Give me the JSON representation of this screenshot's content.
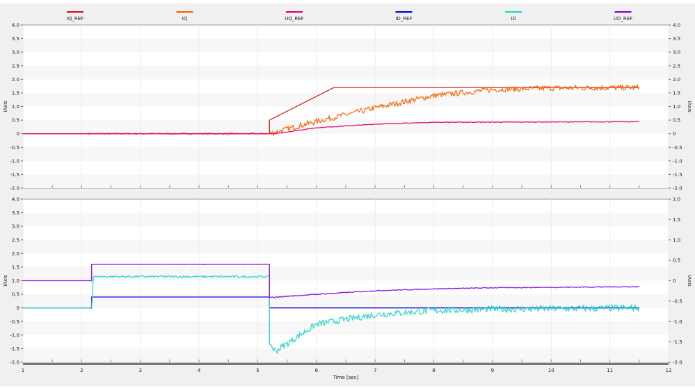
{
  "chart_data": [
    {
      "type": "line",
      "title": "",
      "ylabel": "IAxis",
      "ylabel_right": "IAxis",
      "ylim": [
        -2,
        4
      ],
      "ylim_right": [
        -2,
        4
      ],
      "yticks": [
        "4.0",
        "3.5",
        "3.0",
        "2.5",
        "2.0",
        "1.5",
        "1.0",
        "0.5",
        "0",
        "-0.5",
        "-1.0",
        "-1.5",
        "-2.0"
      ],
      "yticks_right": [
        "4.0",
        "3.5",
        "3.0",
        "2.5",
        "2.0",
        "1.5",
        "1.0",
        "0.5",
        "0",
        "-0.5",
        "-1.0",
        "-1.5",
        "-2.0"
      ],
      "series": [
        {
          "name": "IQ_REF",
          "color": "#e02020",
          "points": [
            [
              1,
              0
            ],
            [
              5.2,
              0
            ],
            [
              5.2,
              0.5
            ],
            [
              6.3,
              1.7
            ],
            [
              11.5,
              1.7
            ]
          ],
          "noise": 0
        },
        {
          "name": "IQ",
          "color": "#ff6a10",
          "points": [
            [
              1,
              0
            ],
            [
              5.2,
              0
            ],
            [
              6,
              0.45
            ],
            [
              7,
              0.95
            ],
            [
              8,
              1.4
            ],
            [
              9,
              1.62
            ],
            [
              10,
              1.68
            ],
            [
              11.5,
              1.7
            ]
          ],
          "noise": 0.1
        },
        {
          "name": "UQ_REF",
          "color": "#e0107a",
          "points": [
            [
              1,
              0
            ],
            [
              5.3,
              0
            ],
            [
              6,
              0.22
            ],
            [
              7,
              0.35
            ],
            [
              8,
              0.42
            ],
            [
              11.5,
              0.44
            ]
          ],
          "noise": 0.01
        }
      ]
    },
    {
      "type": "line",
      "xlabel": "Time [sec]",
      "ylabel": "IAxis",
      "ylabel_right": "IAxis",
      "ylim": [
        -2,
        4
      ],
      "ylim_right": [
        -2,
        2
      ],
      "xlim": [
        1,
        12
      ],
      "xticks": [
        "1",
        "2",
        "3",
        "4",
        "5",
        "6",
        "7",
        "8",
        "9",
        "10",
        "11",
        "12"
      ],
      "yticks": [
        "4.0",
        "3.5",
        "3.0",
        "2.5",
        "2.0",
        "1.5",
        "1.0",
        "0.5",
        "0",
        "-0.5",
        "-1.0",
        "-1.5",
        "-2.0"
      ],
      "yticks_right": [
        "2.0",
        "1.5",
        "1.0",
        "0.5",
        "0",
        "-0.5",
        "-1.0",
        "-1.5",
        "-2.0"
      ],
      "series": [
        {
          "name": "ID_REF",
          "color": "#1010e0",
          "points": [
            [
              1,
              0
            ],
            [
              2.17,
              0
            ],
            [
              2.17,
              0.4
            ],
            [
              5.2,
              0.4
            ],
            [
              5.2,
              0
            ],
            [
              11.5,
              0
            ]
          ],
          "noise": 0
        },
        {
          "name": "ID",
          "color": "#30d8c8",
          "points": [
            [
              1,
              0
            ],
            [
              2.17,
              0
            ],
            [
              2.2,
              1.15
            ],
            [
              5.2,
              1.15
            ],
            [
              5.2,
              -1.3
            ],
            [
              5.3,
              -1.6
            ],
            [
              6,
              -0.6
            ],
            [
              7,
              -0.25
            ],
            [
              8,
              -0.1
            ],
            [
              9,
              -0.05
            ],
            [
              11.5,
              0
            ]
          ],
          "noise": 0.12
        },
        {
          "name": "UD_REF",
          "color": "#8a10f0",
          "points": [
            [
              1,
              1
            ],
            [
              2.17,
              1
            ],
            [
              2.17,
              1.6
            ],
            [
              5.2,
              1.6
            ],
            [
              5.2,
              0.38
            ],
            [
              6,
              0.5
            ],
            [
              7,
              0.63
            ],
            [
              8,
              0.7
            ],
            [
              9,
              0.74
            ],
            [
              11.5,
              0.78
            ]
          ],
          "noise": 0.015
        }
      ]
    }
  ],
  "legend": [
    "IQ_REF",
    "IQ",
    "UQ_REF",
    "ID_REF",
    "ID",
    "UD_REF"
  ]
}
